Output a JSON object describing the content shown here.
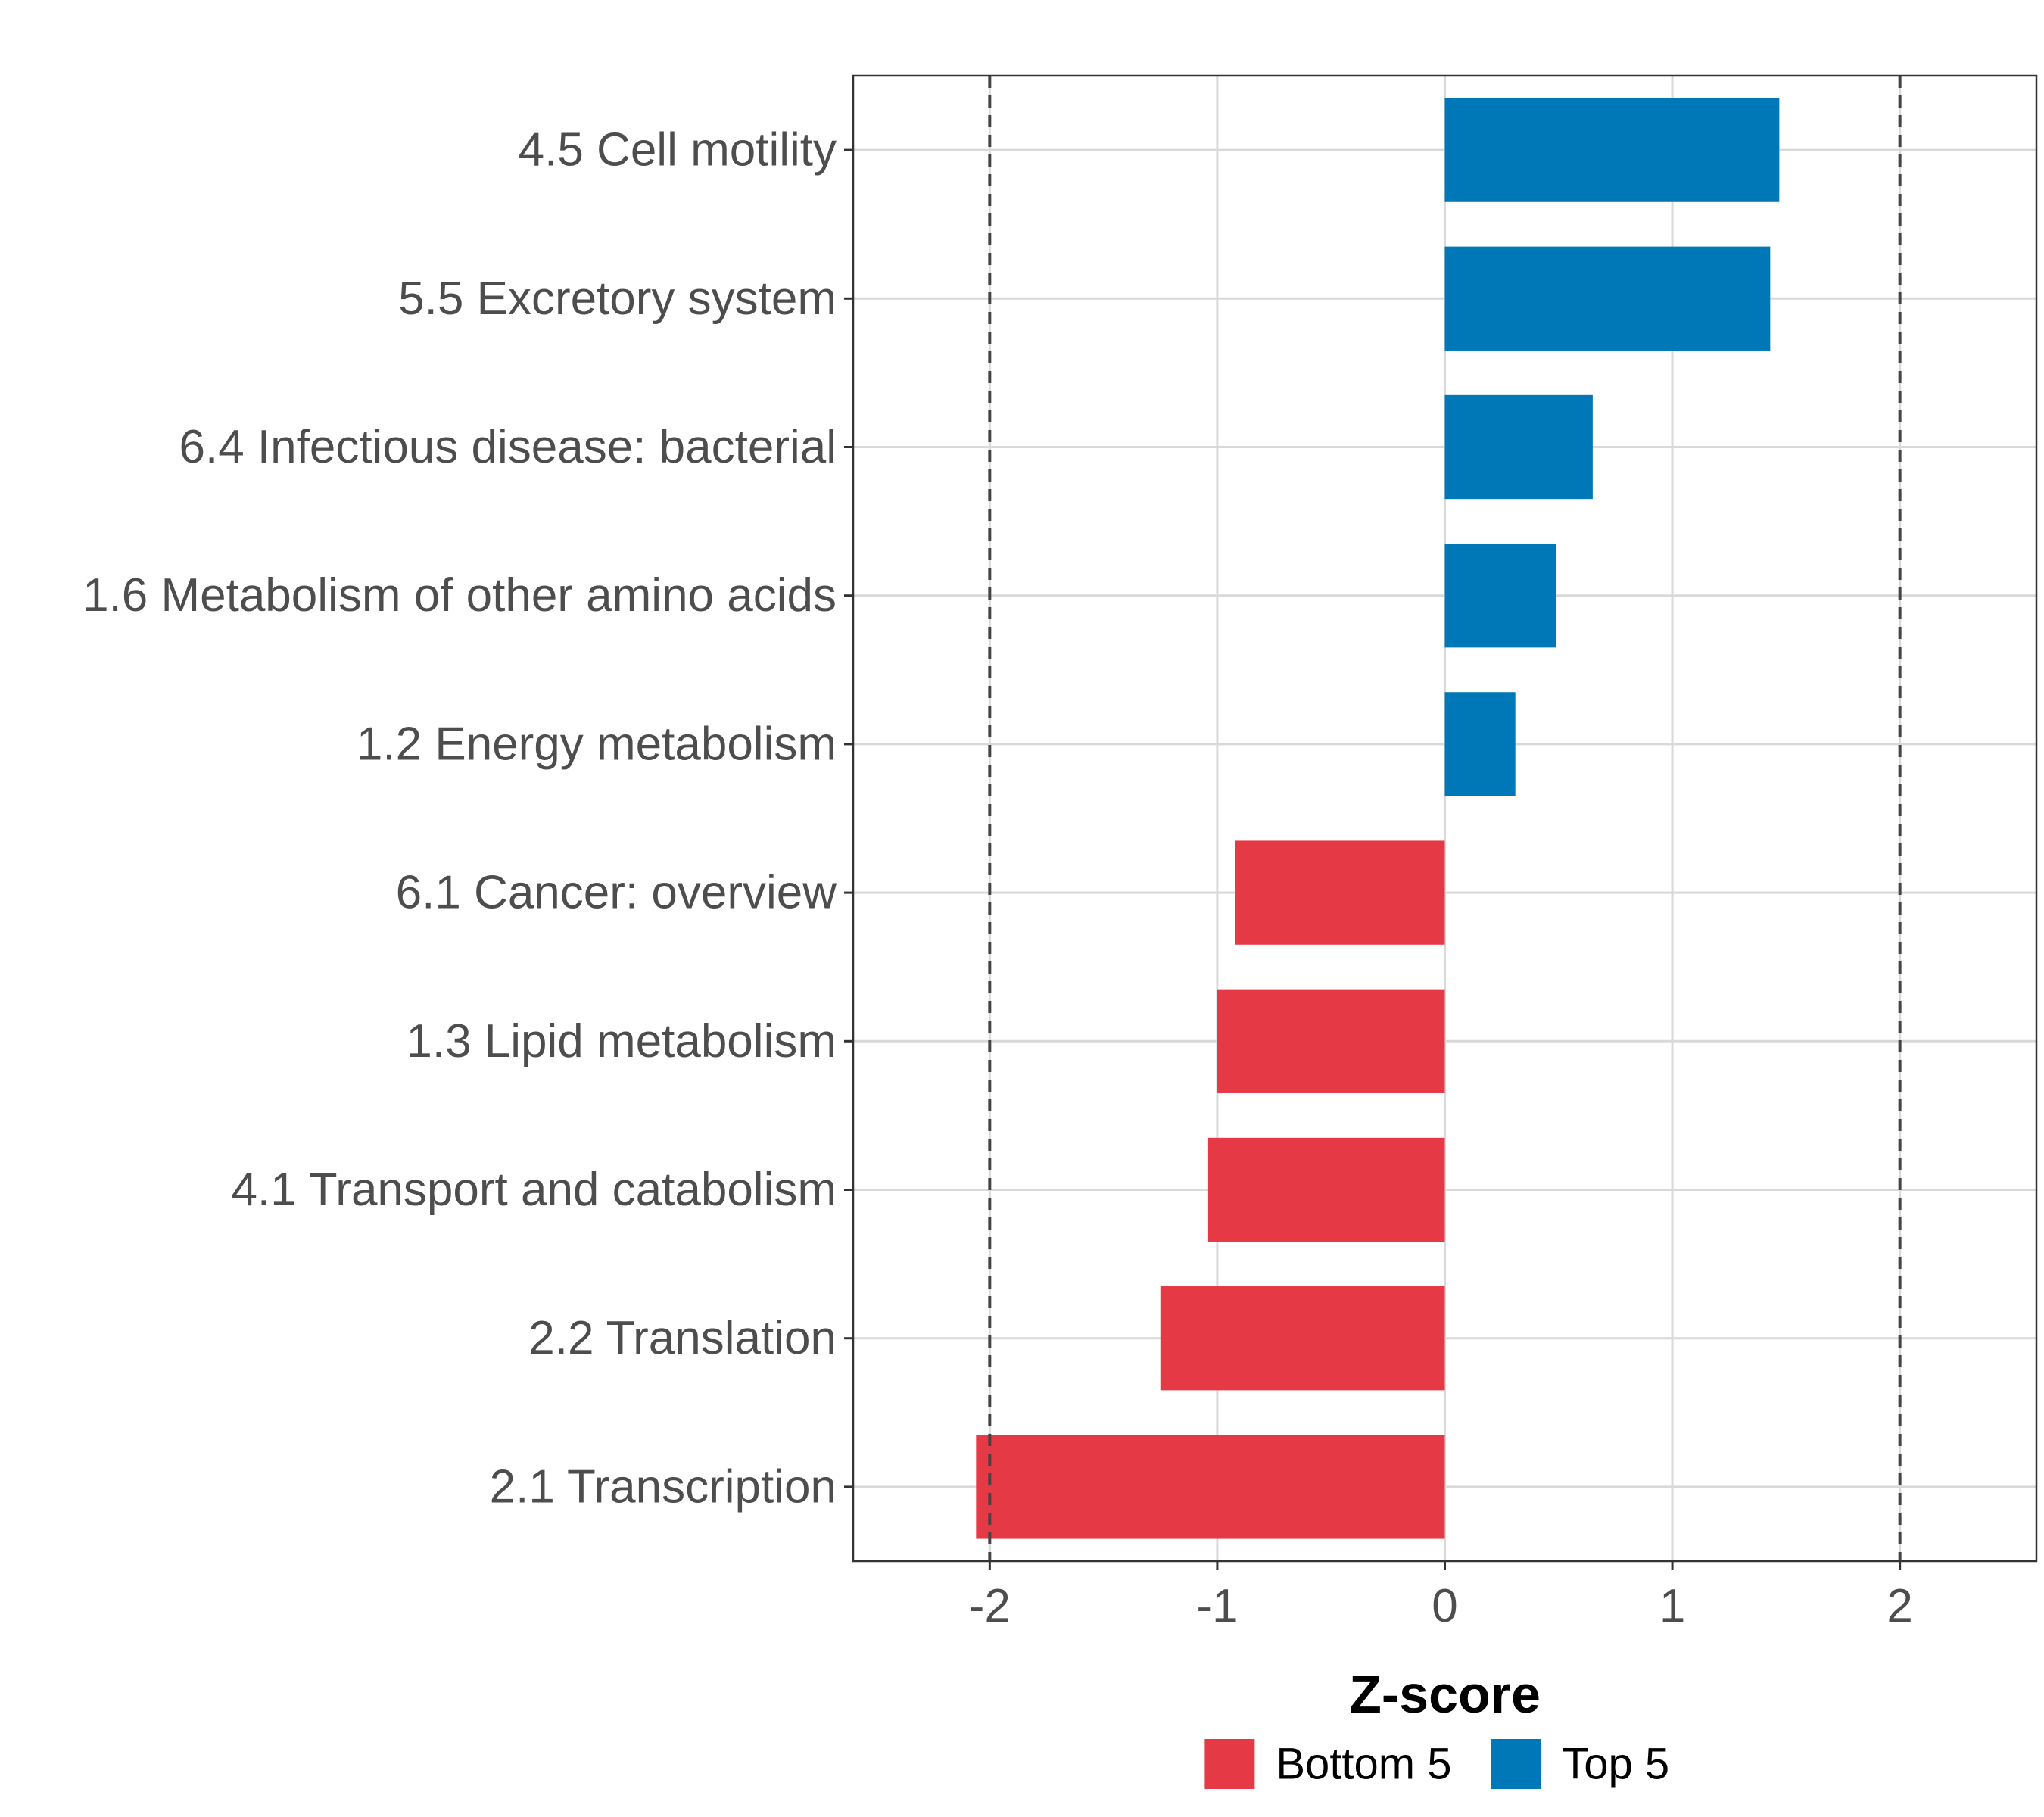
{
  "chart_data": {
    "type": "bar",
    "orientation": "horizontal",
    "categories": [
      "4.5 Cell motility",
      "5.5 Excretory system",
      "6.4 Infectious disease: bacterial",
      "1.6 Metabolism of other amino acids",
      "1.2 Energy metabolism",
      "6.1 Cancer: overview",
      "1.3 Lipid metabolism",
      "4.1 Transport and catabolism",
      "2.2 Translation",
      "2.1 Transcription"
    ],
    "values": [
      1.47,
      1.43,
      0.65,
      0.49,
      0.31,
      -0.92,
      -1.0,
      -1.04,
      -1.25,
      -2.06
    ],
    "groups": [
      "Top 5",
      "Top 5",
      "Top 5",
      "Top 5",
      "Top 5",
      "Bottom 5",
      "Bottom 5",
      "Bottom 5",
      "Bottom 5",
      "Bottom 5"
    ],
    "xlabel": "Z-score",
    "ylabel": "",
    "xlim": [
      -2.6,
      2.6
    ],
    "xticks": [
      -2,
      -1,
      0,
      1,
      2
    ],
    "xtick_labels": [
      "-2",
      "-1",
      "0",
      "1",
      "2"
    ],
    "reference_lines": [
      -2,
      2
    ],
    "reference_line_style": "dashed",
    "grid": true,
    "legend": {
      "position": "bottom",
      "entries": [
        {
          "label": "Bottom 5",
          "color": "#e63946"
        },
        {
          "label": "Top 5",
          "color": "#0077b6"
        }
      ]
    },
    "colors": {
      "Bottom 5": "#e63946",
      "Top 5": "#0077b6"
    }
  }
}
